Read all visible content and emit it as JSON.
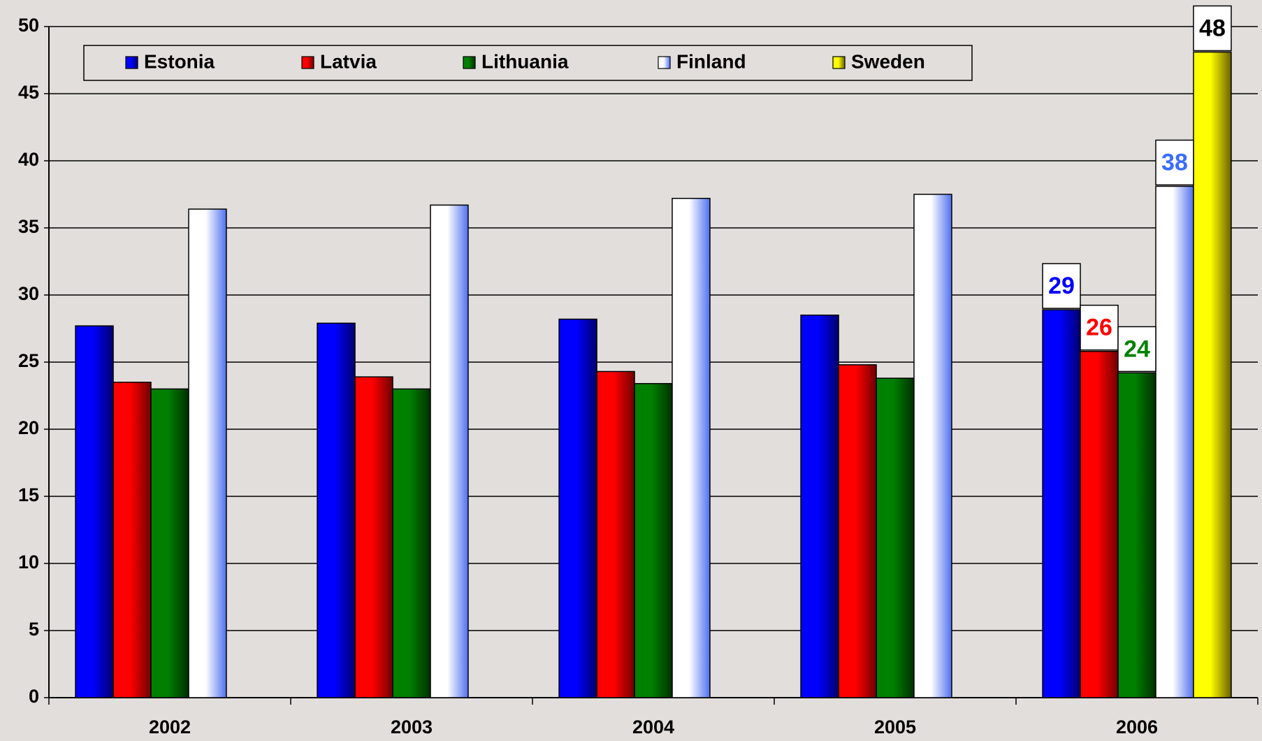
{
  "chart_data": {
    "type": "bar",
    "categories": [
      "2002",
      "2003",
      "2004",
      "2005",
      "2006"
    ],
    "series": [
      {
        "name": "Estonia",
        "color": "#0000ff",
        "values": [
          27.7,
          27.9,
          28.2,
          28.5,
          28.9
        ],
        "value_labels": [
          null,
          null,
          null,
          null,
          "29"
        ]
      },
      {
        "name": "Latvia",
        "color": "#ff0000",
        "values": [
          23.5,
          23.9,
          24.3,
          24.8,
          25.8
        ],
        "value_labels": [
          null,
          null,
          null,
          null,
          "26"
        ]
      },
      {
        "name": "Lithuania",
        "color": "#008000",
        "values": [
          23.0,
          23.0,
          23.4,
          23.8,
          24.2
        ],
        "value_labels": [
          null,
          null,
          null,
          null,
          "24"
        ]
      },
      {
        "name": "Finland",
        "color": "#ffffff",
        "values": [
          36.4,
          36.7,
          37.2,
          37.5,
          38.1
        ],
        "value_labels": [
          null,
          null,
          null,
          null,
          "38"
        ]
      },
      {
        "name": "Sweden",
        "color": "#ffff00",
        "values": [
          null,
          null,
          null,
          null,
          48.1
        ],
        "value_labels": [
          null,
          null,
          null,
          null,
          "48"
        ]
      }
    ],
    "ylim": [
      0,
      50
    ],
    "yticks": [
      0,
      5,
      10,
      15,
      20,
      25,
      30,
      35,
      40,
      45,
      50
    ],
    "grid": true,
    "legend": "top"
  }
}
